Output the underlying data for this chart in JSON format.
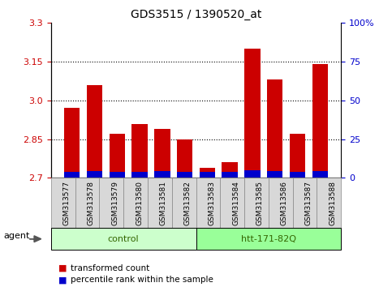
{
  "title": "GDS3515 / 1390520_at",
  "categories": [
    "GSM313577",
    "GSM313578",
    "GSM313579",
    "GSM313580",
    "GSM313581",
    "GSM313582",
    "GSM313583",
    "GSM313584",
    "GSM313585",
    "GSM313586",
    "GSM313587",
    "GSM313588"
  ],
  "transformed_count": [
    2.97,
    3.06,
    2.87,
    2.91,
    2.89,
    2.85,
    2.74,
    2.76,
    3.2,
    3.08,
    2.87,
    3.14
  ],
  "percentile_values": [
    2.725,
    2.728,
    2.725,
    2.724,
    2.726,
    2.723,
    2.722,
    2.722,
    2.73,
    2.727,
    2.724,
    2.727
  ],
  "ymin": 2.7,
  "ymax": 3.3,
  "yticks_left": [
    2.7,
    2.85,
    3.0,
    3.15,
    3.3
  ],
  "yticks_right": [
    0,
    25,
    50,
    75,
    100
  ],
  "yticks_right_labels": [
    "0",
    "25",
    "50",
    "75",
    "100%"
  ],
  "dotted_lines": [
    2.85,
    3.0,
    3.15
  ],
  "bar_color_red": "#cc0000",
  "bar_color_blue": "#0000cc",
  "bar_width": 0.7,
  "group_labels": [
    "control",
    "htt-171-82Q"
  ],
  "group_ranges": [
    [
      0,
      5
    ],
    [
      6,
      11
    ]
  ],
  "group_colors_light": [
    "#ccffcc",
    "#99ff99"
  ],
  "group_colors_strong": [
    "#aaeebb",
    "#55ee55"
  ],
  "agent_label": "agent",
  "legend_entries": [
    "transformed count",
    "percentile rank within the sample"
  ],
  "left_tick_color": "#cc0000",
  "right_tick_color": "#0000cc",
  "background_color": "#ffffff",
  "plot_bg_color": "#ffffff",
  "tick_box_color": "#d8d8d8",
  "tick_box_edge": "#888888"
}
